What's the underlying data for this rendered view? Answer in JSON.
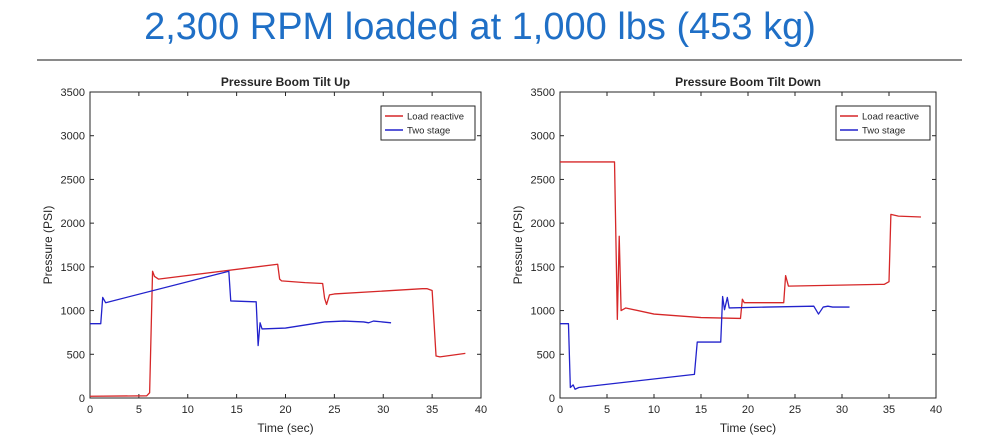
{
  "headline": "2,300 RPM loaded at 1,000 lbs (453 kg)",
  "colors": {
    "headline": "#1f6fc6",
    "load_reactive": "#d62728",
    "two_stage": "#2222cc",
    "rule": "#8a8a8a"
  },
  "chart_data": [
    {
      "type": "line",
      "title": "Pressure Boom Tilt Up",
      "xlabel": "Time (sec)",
      "ylabel": "Pressure (PSI)",
      "xlim": [
        0,
        40
      ],
      "ylim": [
        0,
        3500
      ],
      "xticks": [
        0,
        5,
        10,
        15,
        20,
        25,
        30,
        35,
        40
      ],
      "yticks": [
        0,
        500,
        1000,
        1500,
        2000,
        2500,
        3000,
        3500
      ],
      "legend_position": "top-right",
      "series": [
        {
          "name": "Load reactive",
          "color": "#d62728",
          "points": [
            [
              0,
              20
            ],
            [
              5.8,
              25
            ],
            [
              6.1,
              60
            ],
            [
              6.4,
              1450
            ],
            [
              6.6,
              1390
            ],
            [
              7,
              1360
            ],
            [
              19.2,
              1530
            ],
            [
              19.4,
              1360
            ],
            [
              19.6,
              1340
            ],
            [
              22,
              1320
            ],
            [
              23.8,
              1310
            ],
            [
              24,
              1140
            ],
            [
              24.2,
              1070
            ],
            [
              24.5,
              1180
            ],
            [
              25,
              1190
            ],
            [
              34,
              1250
            ],
            [
              34.5,
              1250
            ],
            [
              35,
              1230
            ],
            [
              35.4,
              480
            ],
            [
              35.8,
              470
            ],
            [
              38.4,
              510
            ]
          ],
          "oscillation": {
            "from": 24.5,
            "to": 34.2,
            "center": 1220,
            "amplitude": 60,
            "period": 0.22
          }
        },
        {
          "name": "Two stage",
          "color": "#2222cc",
          "points": [
            [
              0,
              850
            ],
            [
              1.1,
              850
            ],
            [
              1.3,
              1150
            ],
            [
              1.6,
              1090
            ],
            [
              14.2,
              1450
            ],
            [
              14.4,
              1110
            ],
            [
              17,
              1100
            ],
            [
              17.2,
              600
            ],
            [
              17.4,
              860
            ],
            [
              17.6,
              790
            ],
            [
              20,
              800
            ],
            [
              24,
              870
            ],
            [
              26,
              880
            ],
            [
              28,
              870
            ],
            [
              28.5,
              860
            ],
            [
              29,
              880
            ],
            [
              30.8,
              860
            ]
          ]
        }
      ]
    },
    {
      "type": "line",
      "title": "Pressure Boom Tilt Down",
      "xlabel": "Time (sec)",
      "ylabel": "Pressure (PSI)",
      "xlim": [
        0,
        40
      ],
      "ylim": [
        0,
        3500
      ],
      "xticks": [
        0,
        5,
        10,
        15,
        20,
        25,
        30,
        35,
        40
      ],
      "yticks": [
        0,
        500,
        1000,
        1500,
        2000,
        2500,
        3000,
        3500
      ],
      "legend_position": "top-right",
      "series": [
        {
          "name": "Load reactive",
          "color": "#d62728",
          "points": [
            [
              0,
              2700
            ],
            [
              5.8,
              2700
            ],
            [
              6.1,
              900
            ],
            [
              6.3,
              1850
            ],
            [
              6.5,
              1000
            ],
            [
              7,
              1030
            ],
            [
              10,
              960
            ],
            [
              15,
              920
            ],
            [
              19.2,
              910
            ],
            [
              19.4,
              1130
            ],
            [
              19.6,
              1090
            ],
            [
              23.8,
              1090
            ],
            [
              24,
              1400
            ],
            [
              24.3,
              1280
            ],
            [
              34,
              1300
            ],
            [
              34.5,
              1300
            ],
            [
              35,
              1330
            ],
            [
              35.2,
              2100
            ],
            [
              36,
              2080
            ],
            [
              38.4,
              2070
            ]
          ],
          "oscillation": {
            "from": 24.4,
            "to": 34.2,
            "center": 1290,
            "amplitude": 60,
            "period": 0.22
          }
        },
        {
          "name": "Two stage",
          "color": "#2222cc",
          "points": [
            [
              0,
              850
            ],
            [
              0.9,
              850
            ],
            [
              1.1,
              120
            ],
            [
              1.4,
              150
            ],
            [
              1.6,
              100
            ],
            [
              2,
              120
            ],
            [
              14.3,
              270
            ],
            [
              14.6,
              640
            ],
            [
              17.1,
              640
            ],
            [
              17.3,
              1160
            ],
            [
              17.5,
              1010
            ],
            [
              17.8,
              1150
            ],
            [
              18,
              1030
            ],
            [
              22,
              1040
            ],
            [
              27,
              1050
            ],
            [
              27.5,
              960
            ],
            [
              28,
              1040
            ],
            [
              28.5,
              1050
            ],
            [
              29,
              1040
            ],
            [
              30.8,
              1040
            ]
          ]
        }
      ]
    }
  ]
}
